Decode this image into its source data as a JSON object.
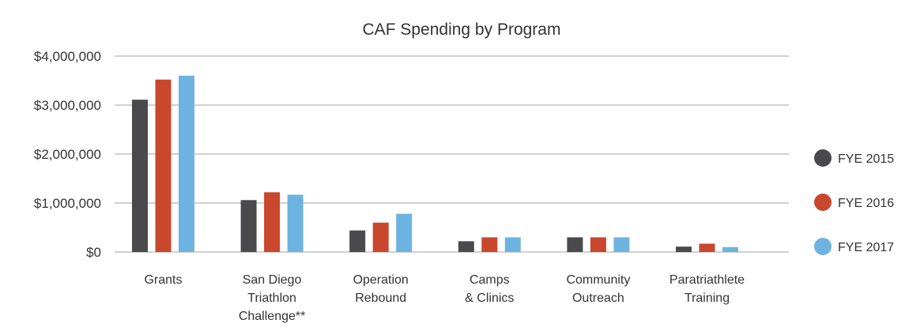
{
  "chart_data": {
    "type": "bar",
    "title": "CAF Spending by Program",
    "xlabel": "",
    "ylabel": "",
    "ylim": [
      0,
      4000000
    ],
    "yticks": [
      0,
      1000000,
      2000000,
      3000000,
      4000000
    ],
    "ytick_labels": [
      "$0",
      "$1,000,000",
      "$2,000,000",
      "$3,000,000",
      "$4,000,000"
    ],
    "grid": true,
    "legend_position": "right",
    "categories": [
      [
        "Grants"
      ],
      [
        "San Diego",
        "Triathlon",
        "Challenge**"
      ],
      [
        "Operation",
        "Rebound"
      ],
      [
        "Camps",
        "& Clinics"
      ],
      [
        "Community",
        "Outreach"
      ],
      [
        "Paratriathlete",
        "Training"
      ]
    ],
    "series": [
      {
        "name": "FYE 2015",
        "color": "#4a4a4c",
        "values": [
          3110000,
          1060000,
          440000,
          220000,
          300000,
          110000
        ]
      },
      {
        "name": "FYE 2016",
        "color": "#c9472d",
        "values": [
          3520000,
          1220000,
          600000,
          300000,
          300000,
          170000
        ]
      },
      {
        "name": "FYE 2017",
        "color": "#6db3e2",
        "values": [
          3600000,
          1170000,
          780000,
          300000,
          300000,
          100000
        ]
      }
    ]
  }
}
